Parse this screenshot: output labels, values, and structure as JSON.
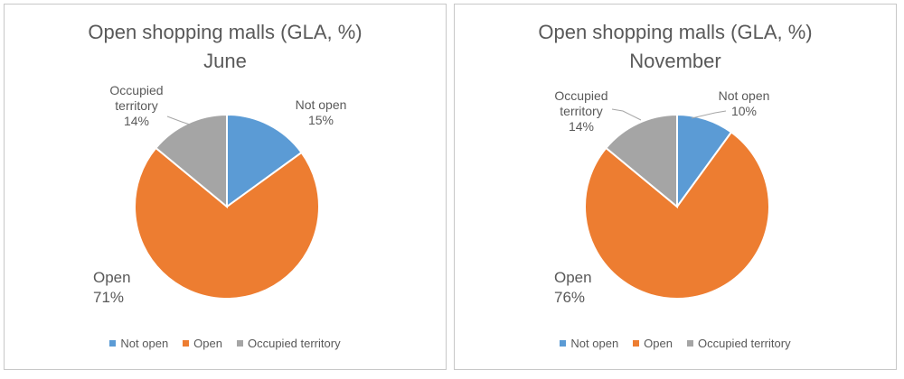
{
  "chart_data": [
    {
      "type": "pie",
      "title": "Open shopping malls (GLA, %)",
      "subtitle": "June",
      "categories": [
        "Not open",
        "Open",
        "Occupied territory"
      ],
      "values": [
        15,
        71,
        14
      ],
      "colors": [
        "#5b9bd5",
        "#ed7d31",
        "#a5a5a5"
      ],
      "data_labels": [
        {
          "name": "Not open",
          "value": "15%"
        },
        {
          "name": "Open",
          "value": "71%"
        },
        {
          "name": "Occupied territory",
          "value": "14%"
        }
      ],
      "legend_placement": "bottom"
    },
    {
      "type": "pie",
      "title": "Open shopping malls (GLA, %)",
      "subtitle": "November",
      "categories": [
        "Not open",
        "Open",
        "Occupied territory"
      ],
      "values": [
        10,
        76,
        14
      ],
      "colors": [
        "#5b9bd5",
        "#ed7d31",
        "#a5a5a5"
      ],
      "data_labels": [
        {
          "name": "Not open",
          "value": "10%"
        },
        {
          "name": "Open",
          "value": "76%"
        },
        {
          "name": "Occupied territory",
          "value": "14%"
        }
      ],
      "legend_placement": "bottom"
    }
  ]
}
